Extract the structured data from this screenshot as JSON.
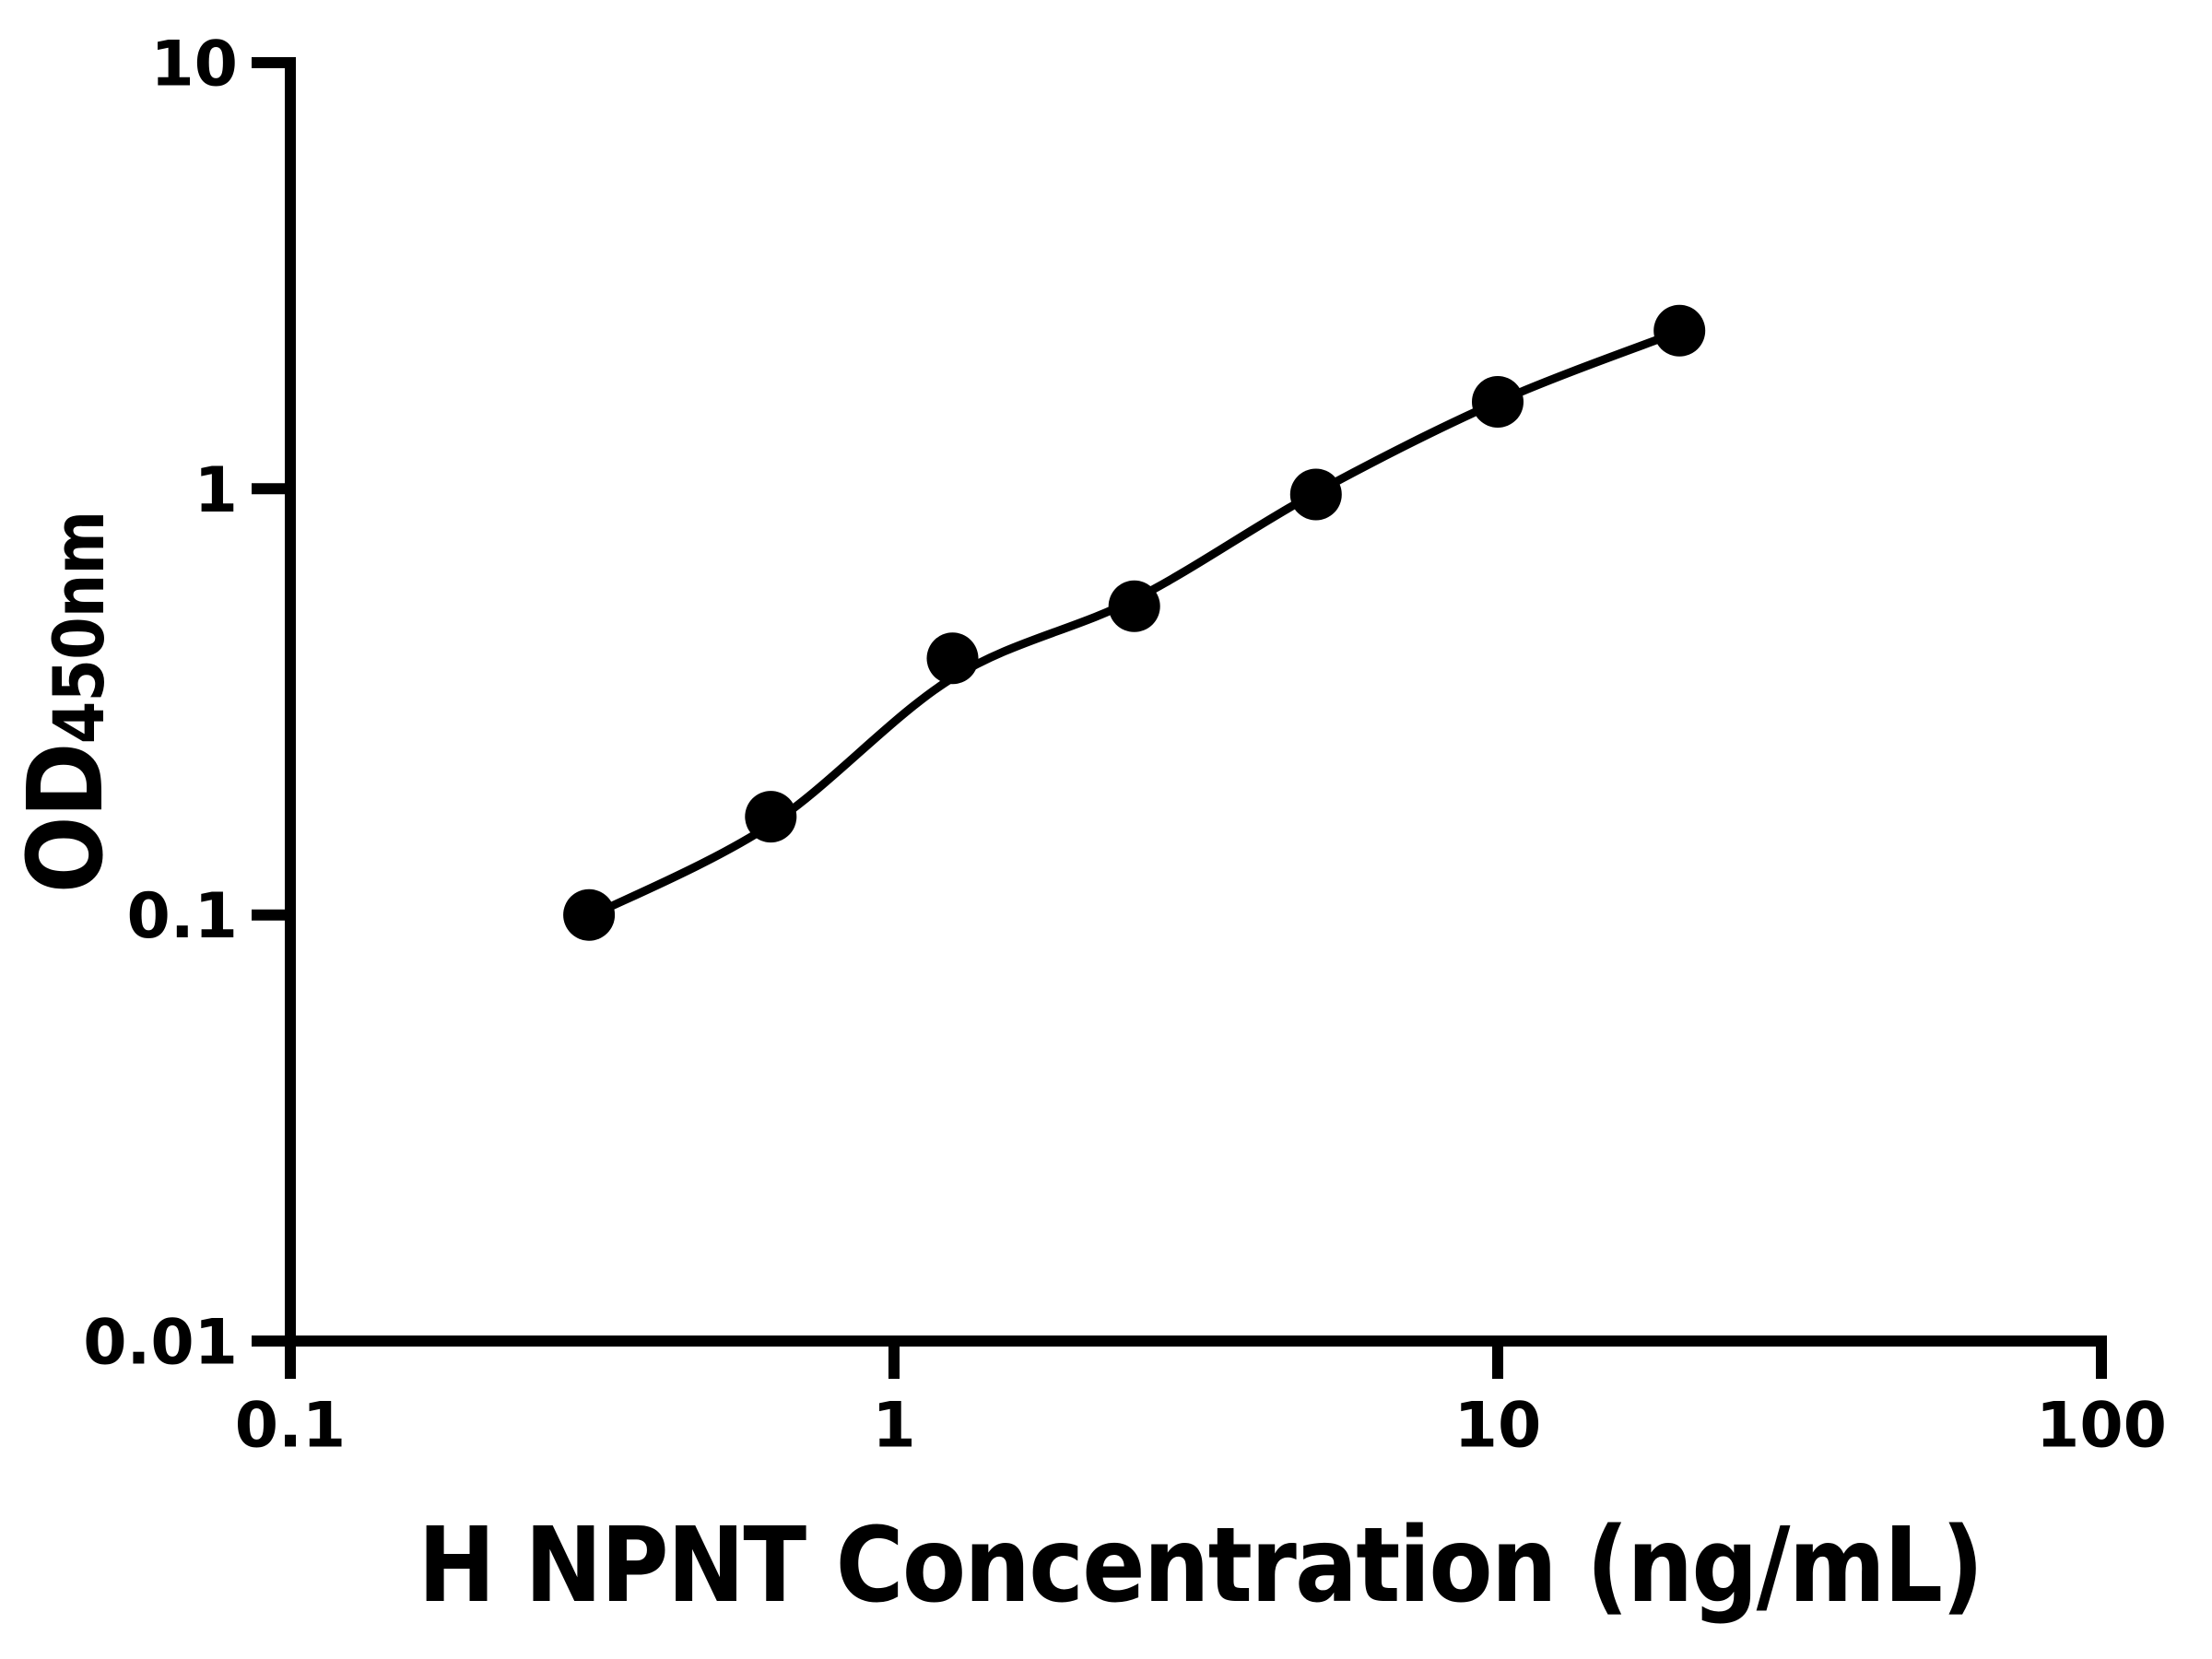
{
  "chart_data": {
    "type": "scatter",
    "title": "",
    "xlabel": "H NPNT Concentration (ng/mL)",
    "ylabel_main": "OD",
    "ylabel_sub": "450nm",
    "x_scale": "log",
    "y_scale": "log",
    "xlim": [
      0.1,
      100
    ],
    "ylim": [
      0.01,
      10
    ],
    "grid": false,
    "legend": "none",
    "x_ticks": [
      {
        "value": 0.1,
        "label": "0.1"
      },
      {
        "value": 1,
        "label": "1"
      },
      {
        "value": 10,
        "label": "10"
      },
      {
        "value": 100,
        "label": "100"
      }
    ],
    "y_ticks": [
      {
        "value": 0.01,
        "label": "0.01"
      },
      {
        "value": 0.1,
        "label": "0.1"
      },
      {
        "value": 1,
        "label": "1"
      },
      {
        "value": 10,
        "label": "10"
      }
    ],
    "series": [
      {
        "name": "standard-curve-points",
        "marker": "filled-circle",
        "color": "#000000",
        "points": [
          {
            "x": 0.3125,
            "y": 0.1
          },
          {
            "x": 0.625,
            "y": 0.17
          },
          {
            "x": 1.25,
            "y": 0.4
          },
          {
            "x": 2.5,
            "y": 0.53
          },
          {
            "x": 5,
            "y": 0.97
          },
          {
            "x": 10,
            "y": 1.6
          },
          {
            "x": 20,
            "y": 2.35
          }
        ]
      }
    ],
    "fit_line": {
      "name": "4pl-fit-curve",
      "color": "#000000",
      "points": [
        {
          "x": 0.3125,
          "y": 0.099
        },
        {
          "x": 0.625,
          "y": 0.163
        },
        {
          "x": 1.25,
          "y": 0.36
        },
        {
          "x": 2.5,
          "y": 0.55
        },
        {
          "x": 5,
          "y": 0.98
        },
        {
          "x": 10,
          "y": 1.6
        },
        {
          "x": 20,
          "y": 2.34
        }
      ]
    }
  },
  "colors": {
    "background": "#ffffff",
    "foreground": "#000000"
  }
}
